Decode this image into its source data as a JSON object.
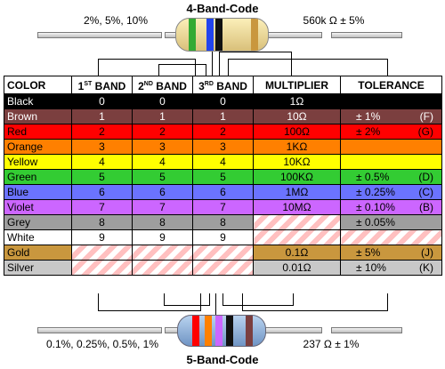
{
  "top": {
    "title": "4-Band-Code",
    "left_label": "2%, 5%, 10%",
    "right_label": "560k Ω   ± 5%"
  },
  "bottom": {
    "title": "5-Band-Code",
    "left_label": "0.1%, 0.25%, 0.5%, 1%",
    "right_label": "237 Ω   ± 1%"
  },
  "headers": {
    "color": "COLOR",
    "band1_num": "1",
    "band1_sup": "ST",
    "band1_txt": " BAND",
    "band2_num": "2",
    "band2_sup": "ND",
    "band2_txt": " BAND",
    "band3_num": "3",
    "band3_sup": "RD",
    "band3_txt": " BAND",
    "multiplier": "MULTIPLIER",
    "tolerance": "TOLERANCE"
  },
  "rows": [
    {
      "name": "Black",
      "b1": "0",
      "b2": "0",
      "b3": "0",
      "mult": "1Ω",
      "tol": "",
      "code": "",
      "bg": "#000000",
      "fg": "#ffffff"
    },
    {
      "name": "Brown",
      "b1": "1",
      "b2": "1",
      "b3": "1",
      "mult": "10Ω",
      "tol": "± 1%",
      "code": "(F)",
      "bg": "#7b3f3f",
      "fg": "#ffffff"
    },
    {
      "name": "Red",
      "b1": "2",
      "b2": "2",
      "b3": "2",
      "mult": "100Ω",
      "tol": "± 2%",
      "code": "(G)",
      "bg": "#ff0000",
      "fg": "#000000"
    },
    {
      "name": "Orange",
      "b1": "3",
      "b2": "3",
      "b3": "3",
      "mult": "1KΩ",
      "tol": "",
      "code": "",
      "bg": "#ff8000",
      "fg": "#000000"
    },
    {
      "name": "Yellow",
      "b1": "4",
      "b2": "4",
      "b3": "4",
      "mult": "10KΩ",
      "tol": "",
      "code": "",
      "bg": "#ffff00",
      "fg": "#000000"
    },
    {
      "name": "Green",
      "b1": "5",
      "b2": "5",
      "b3": "5",
      "mult": "100KΩ",
      "tol": "± 0.5%",
      "code": "(D)",
      "bg": "#33cc33",
      "fg": "#000000"
    },
    {
      "name": "Blue",
      "b1": "6",
      "b2": "6",
      "b3": "6",
      "mult": "1MΩ",
      "tol": "± 0.25%",
      "code": "(C)",
      "bg": "#6b73ff",
      "fg": "#000000"
    },
    {
      "name": "Violet",
      "b1": "7",
      "b2": "7",
      "b3": "7",
      "mult": "10MΩ",
      "tol": "± 0.10%",
      "code": "(B)",
      "bg": "#cc66ff",
      "fg": "#000000"
    },
    {
      "name": "Grey",
      "b1": "8",
      "b2": "8",
      "b3": "8",
      "mult": "",
      "tol": "± 0.05%",
      "code": "",
      "bg": "#9e9e9e",
      "fg": "#000000"
    },
    {
      "name": "White",
      "b1": "9",
      "b2": "9",
      "b3": "9",
      "mult": "",
      "tol": "",
      "code": "",
      "bg": "#ffffff",
      "fg": "#000000"
    },
    {
      "name": "Gold",
      "b1": "",
      "b2": "",
      "b3": "",
      "mult": "0.1Ω",
      "tol": "± 5%",
      "code": "(J)",
      "bg": "#c9973e",
      "fg": "#000000"
    },
    {
      "name": "Silver",
      "b1": "",
      "b2": "",
      "b3": "",
      "mult": "0.01Ω",
      "tol": "± 10%",
      "code": "(K)",
      "bg": "#c8c8c8",
      "fg": "#000000"
    }
  ],
  "top_bands": [
    "#33aa33",
    "#2244ee",
    "#111111",
    "#c9973e"
  ],
  "bottom_bands": [
    "#ff0000",
    "#ff8000",
    "#cc66ff",
    "#111111",
    "#7b3f3f"
  ]
}
